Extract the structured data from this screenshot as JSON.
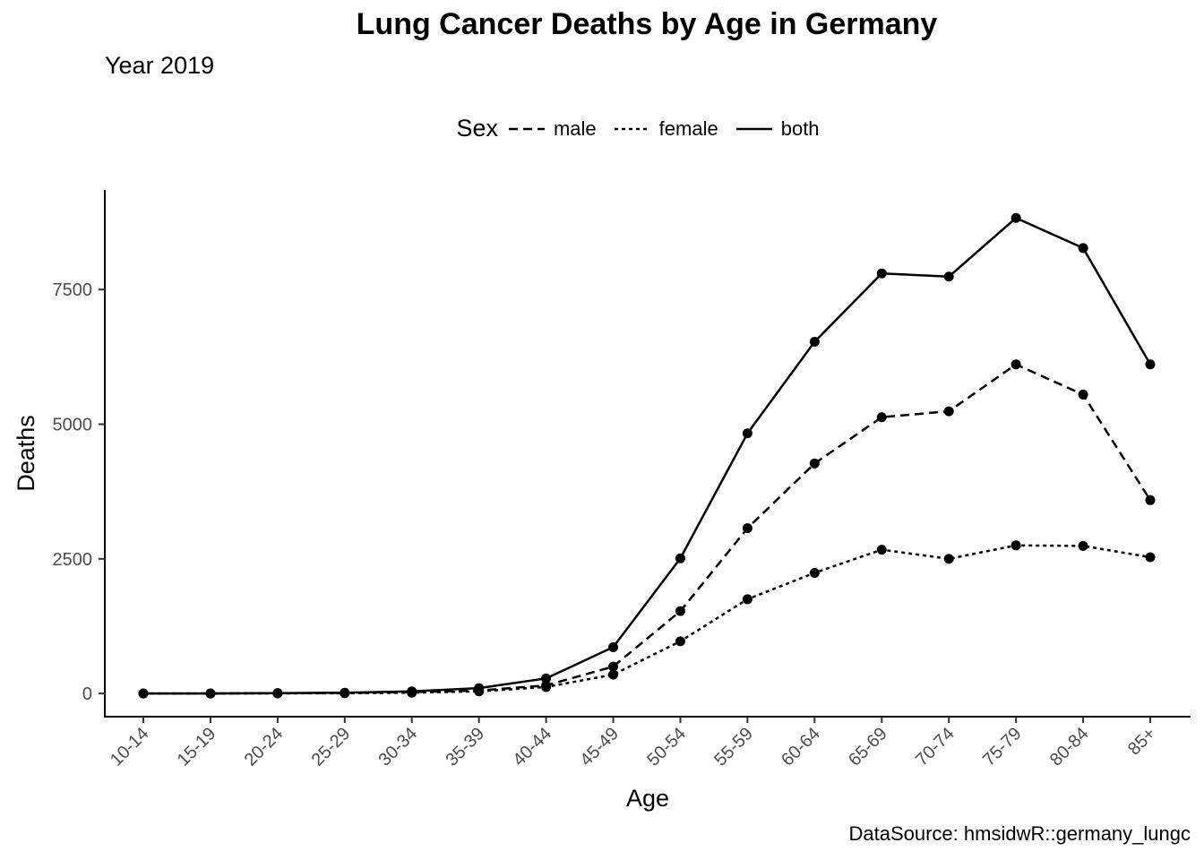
{
  "chart_data": {
    "type": "line",
    "title": "Lung Cancer Deaths by Age in Germany",
    "subtitle": "Year 2019",
    "caption": "DataSource: hmsidwR::germany_lungc",
    "xlabel": "Age",
    "ylabel": "Deaths",
    "legend_title": "Sex",
    "categories": [
      "10-14",
      "15-19",
      "20-24",
      "25-29",
      "30-34",
      "35-39",
      "40-44",
      "45-49",
      "50-54",
      "55-59",
      "60-64",
      "65-69",
      "70-74",
      "75-79",
      "80-84",
      "85+"
    ],
    "yticks": [
      0,
      2500,
      5000,
      7500
    ],
    "ylim": [
      -430,
      9350
    ],
    "series": [
      {
        "name": "male",
        "dash": "dashed",
        "values": [
          0,
          0,
          5,
          10,
          25,
          55,
          150,
          500,
          1530,
          3070,
          4270,
          5130,
          5240,
          6110,
          5550,
          3590
        ]
      },
      {
        "name": "female",
        "dash": "dotted",
        "values": [
          0,
          0,
          3,
          5,
          15,
          40,
          120,
          350,
          970,
          1750,
          2240,
          2670,
          2500,
          2750,
          2740,
          2530
        ]
      },
      {
        "name": "both",
        "dash": "solid",
        "values": [
          0,
          0,
          8,
          15,
          40,
          100,
          280,
          860,
          2510,
          4830,
          6530,
          7800,
          7740,
          8830,
          8270,
          6110
        ]
      }
    ]
  }
}
